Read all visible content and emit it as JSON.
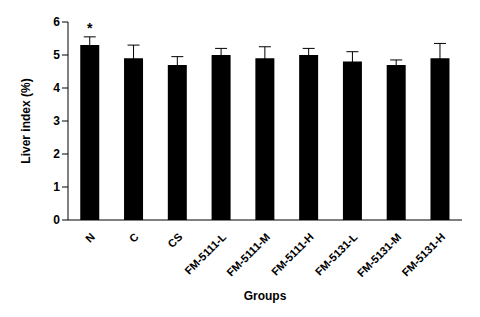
{
  "chart_data": {
    "type": "bar",
    "x_label": "Groups",
    "y_label": "Liver index (%)",
    "categories": [
      "N",
      "C",
      "CS",
      "FM-5111-L",
      "FM-5111-M",
      "FM-5111-H",
      "FM-5131-L",
      "FM-5131-M",
      "FM-5131-H"
    ],
    "values": [
      5.3,
      4.9,
      4.7,
      5.0,
      4.9,
      5.0,
      4.8,
      4.7,
      4.9
    ],
    "errors": [
      0.25,
      0.4,
      0.25,
      0.2,
      0.35,
      0.2,
      0.3,
      0.15,
      0.45
    ],
    "color": "#000000",
    "ylim": [
      0,
      6
    ],
    "yticks": [
      0,
      1,
      2,
      3,
      4,
      5,
      6
    ],
    "grid": false,
    "annotations": [
      {
        "category": "N",
        "text": "*"
      }
    ]
  }
}
